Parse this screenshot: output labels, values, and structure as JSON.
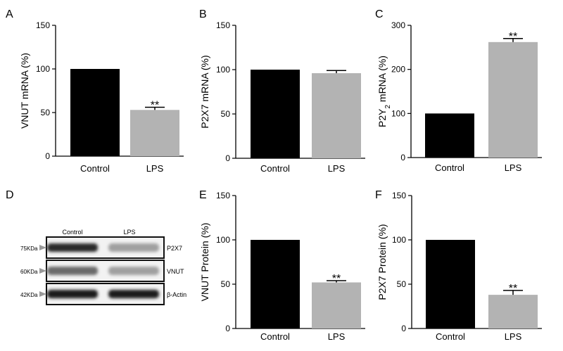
{
  "colors": {
    "control": "#000000",
    "lps": "#b3b3b3",
    "axis": "#000000"
  },
  "chart_data": [
    {
      "panel": "A",
      "type": "bar",
      "categories": [
        "Control",
        "LPS"
      ],
      "values": [
        100,
        53
      ],
      "errors": [
        0,
        3
      ],
      "significance": [
        "",
        "**"
      ],
      "ylabel": "VNUT mRNA (%)",
      "ylim": [
        0,
        150
      ],
      "yticks": [
        0,
        50,
        100,
        150
      ]
    },
    {
      "panel": "B",
      "type": "bar",
      "categories": [
        "Control",
        "LPS"
      ],
      "values": [
        100,
        96
      ],
      "errors": [
        0,
        3
      ],
      "significance": [
        "",
        ""
      ],
      "ylabel": "P2X7 mRNA (%)",
      "ylim": [
        0,
        150
      ],
      "yticks": [
        0,
        50,
        100,
        150
      ]
    },
    {
      "panel": "C",
      "type": "bar",
      "categories": [
        "Control",
        "LPS"
      ],
      "values": [
        100,
        262
      ],
      "errors": [
        0,
        8
      ],
      "significance": [
        "",
        "**"
      ],
      "ylabel_pre": "P2Y",
      "ylabel_sub": "2",
      "ylabel_post": " mRNA (%)",
      "ylim": [
        0,
        300
      ],
      "yticks": [
        0,
        100,
        200,
        300
      ]
    },
    {
      "panel": "E",
      "type": "bar",
      "categories": [
        "Control",
        "LPS"
      ],
      "values": [
        100,
        52
      ],
      "errors": [
        0,
        2
      ],
      "significance": [
        "",
        "**"
      ],
      "ylabel": "VNUT Protein (%)",
      "ylim": [
        0,
        150
      ],
      "yticks": [
        0,
        50,
        100,
        150
      ]
    },
    {
      "panel": "F",
      "type": "bar",
      "categories": [
        "Control",
        "LPS"
      ],
      "values": [
        100,
        38
      ],
      "errors": [
        0,
        5
      ],
      "significance": [
        "",
        "**"
      ],
      "ylabel": "P2X7 Protein (%)",
      "ylim": [
        0,
        150
      ],
      "yticks": [
        0,
        50,
        100,
        150
      ]
    }
  ],
  "blot": {
    "panel": "D",
    "lanes": [
      "Control",
      "LPS"
    ],
    "rows": [
      {
        "marker": "75KDa",
        "label": "P2X7",
        "intensity": [
          0.9,
          0.35
        ]
      },
      {
        "marker": "60KDa",
        "label": "VNUT",
        "intensity": [
          0.6,
          0.35
        ]
      },
      {
        "marker": "42KDa",
        "label": "β-Actin",
        "intensity": [
          0.95,
          0.95
        ]
      }
    ]
  }
}
